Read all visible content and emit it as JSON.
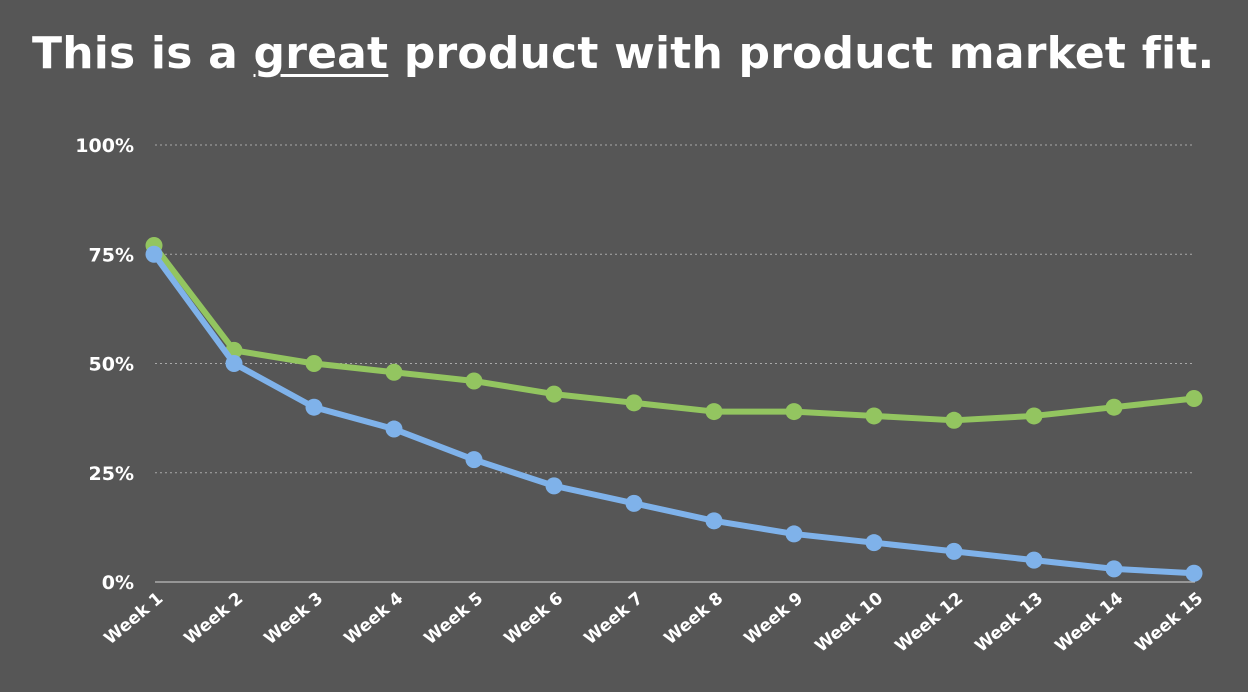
{
  "title": {
    "before": "This is a ",
    "emphasis": "great",
    "after": " product with product market fit."
  },
  "chart_data": {
    "type": "line",
    "categories": [
      "Week 1",
      "Week 2",
      "Week 3",
      "Week 4",
      "Week 5",
      "Week 6",
      "Week 7",
      "Week 8",
      "Week 9",
      "Week 10",
      "Week 12",
      "Week 13",
      "Week 14",
      "Week 15"
    ],
    "y_ticks": [
      "0%",
      "25%",
      "50%",
      "75%",
      "100%"
    ],
    "ylim": [
      0,
      100
    ],
    "grid": true,
    "series": [
      {
        "color": "#93c560",
        "values": [
          77,
          53,
          50,
          48,
          46,
          43,
          41,
          39,
          39,
          38,
          37,
          38,
          40,
          42
        ]
      },
      {
        "color": "#7fb2ea",
        "values": [
          75,
          50,
          40,
          35,
          28,
          22,
          18,
          14,
          11,
          9,
          7,
          5,
          3,
          2
        ]
      }
    ]
  }
}
